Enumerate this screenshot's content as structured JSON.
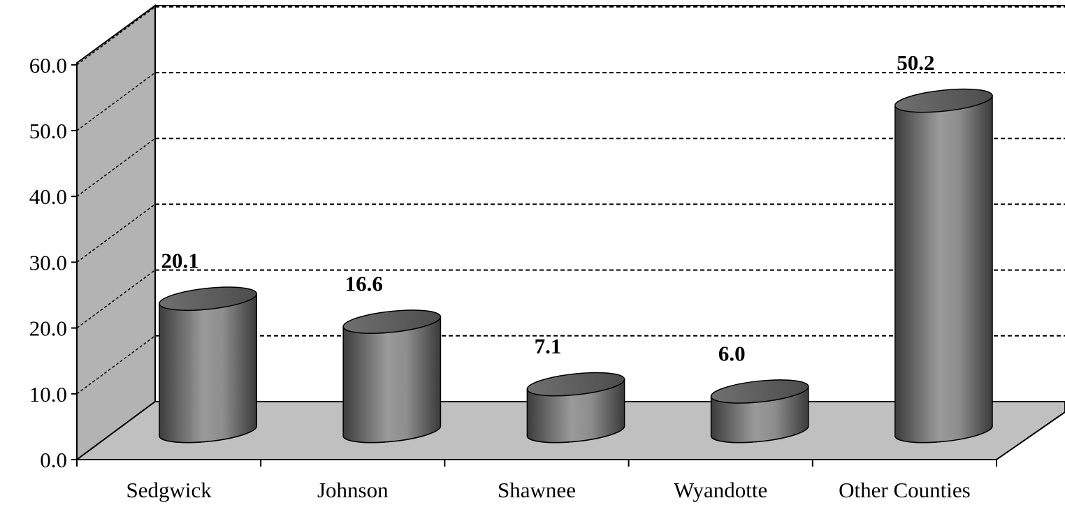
{
  "chart_data": {
    "type": "bar",
    "style": "3d-cylinder",
    "title": "",
    "xlabel": "",
    "ylabel": "",
    "categories": [
      "Sedgwick",
      "Johnson",
      "Shawnee",
      "Wyandotte",
      "Other Counties"
    ],
    "values": [
      20.1,
      16.6,
      7.1,
      6.0,
      50.2
    ],
    "value_labels": [
      "20.1",
      "16.6",
      "7.1",
      "6.0",
      "50.2"
    ],
    "ylim": [
      0,
      60
    ],
    "yticks": [
      "0.0",
      "10.0",
      "20.0",
      "30.0",
      "40.0",
      "50.0",
      "60.0"
    ],
    "grid": true,
    "grid_style": "dashed",
    "legend": "none",
    "colors": {
      "bar_body": "#808080",
      "bar_top": "#5e5e5e",
      "wall": "#b3b3b3",
      "floor": "#c0c0c0"
    }
  }
}
